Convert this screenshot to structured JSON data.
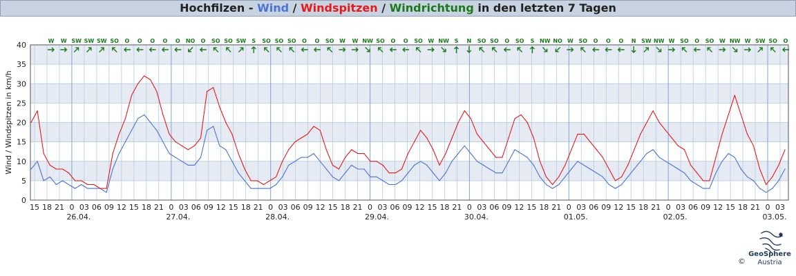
{
  "title_parts": {
    "station": "Hochfilzen",
    "sep1": " - ",
    "wind": "Wind",
    "sep2": " / ",
    "gust": "Windspitzen",
    "sep3": " / ",
    "direction": "Windrichtung",
    "suffix": " in den letzten 7 Tagen"
  },
  "colors": {
    "wind": "#4a74d6",
    "gust": "#e61a1a",
    "direction": "#1a7a1a",
    "band": "#e6eaf2",
    "grid": "#a9c8e4"
  },
  "chart_data": {
    "type": "line",
    "ylabel": "Wind / Windspitzen in km/h",
    "ylim": [
      0,
      40
    ],
    "yticks": [
      0,
      5,
      10,
      15,
      20,
      25,
      30,
      35,
      40
    ],
    "x_tick_labels": [
      "15",
      "18",
      "21",
      "0",
      "03",
      "06",
      "09",
      "12",
      "15",
      "18",
      "21",
      "0",
      "03",
      "06",
      "09",
      "12",
      "15",
      "18",
      "21",
      "0",
      "03",
      "06",
      "09",
      "12",
      "15",
      "18",
      "21",
      "0",
      "03",
      "06",
      "09",
      "12",
      "15",
      "18",
      "21",
      "0",
      "03",
      "06",
      "09",
      "12",
      "15",
      "18",
      "21",
      "0",
      "03",
      "06",
      "09",
      "12",
      "15",
      "18",
      "21",
      "0",
      "03",
      "06",
      "09",
      "12",
      "15",
      "18",
      "21",
      "0",
      "03"
    ],
    "date_labels": [
      "26.04.",
      "27.04.",
      "28.04.",
      "29.04.",
      "30.04.",
      "01.05.",
      "02.05.",
      "03.05."
    ],
    "direction_labels": [
      "W",
      "W",
      "SW",
      "SW",
      "SW",
      "SO",
      "O",
      "O",
      "O",
      "O",
      "O",
      "NO",
      "O",
      "SO",
      "SO",
      "SW",
      "S",
      "SO",
      "SO",
      "SO",
      "O",
      "O",
      "SO",
      "W",
      "W",
      "NW",
      "SO",
      "O",
      "O",
      "SO",
      "W",
      "NW",
      "S",
      "N",
      "SO",
      "SO",
      "O",
      "SO",
      "S",
      "NW",
      "NO",
      "W",
      "SO",
      "O",
      "O",
      "O",
      "N",
      "SW",
      "NW",
      "W",
      "SO",
      "O",
      "SO",
      "W",
      "NW",
      "W",
      "SW",
      "SO",
      "O"
    ],
    "series": [
      {
        "name": "Wind",
        "values": [
          8,
          10,
          5,
          6,
          4,
          5,
          4,
          3,
          4,
          3,
          3,
          3,
          2,
          8,
          12,
          15,
          18,
          21,
          22,
          20,
          18,
          15,
          12,
          11,
          10,
          9,
          9,
          11,
          18,
          19,
          14,
          13,
          10,
          7,
          5,
          3,
          3,
          3,
          3,
          4,
          6,
          9,
          10,
          11,
          11,
          12,
          10,
          8,
          6,
          5,
          7,
          9,
          8,
          8,
          6,
          6,
          5,
          4,
          4,
          5,
          7,
          9,
          10,
          9,
          7,
          5,
          7,
          10,
          12,
          14,
          12,
          10,
          9,
          8,
          7,
          7,
          10,
          13,
          12,
          11,
          9,
          6,
          4,
          3,
          4,
          6,
          8,
          10,
          9,
          8,
          7,
          6,
          4,
          3,
          4,
          6,
          8,
          10,
          12,
          13,
          11,
          10,
          9,
          8,
          7,
          5,
          4,
          3,
          3,
          7,
          10,
          12,
          11,
          8,
          6,
          5,
          3,
          2,
          3,
          5,
          8
        ]
      },
      {
        "name": "Windspitzen",
        "values": [
          20,
          23,
          12,
          9,
          8,
          8,
          7,
          5,
          5,
          4,
          4,
          3,
          3,
          12,
          17,
          21,
          27,
          30,
          32,
          31,
          28,
          22,
          17,
          15,
          14,
          13,
          14,
          16,
          28,
          29,
          24,
          20,
          17,
          12,
          8,
          5,
          5,
          4,
          5,
          6,
          10,
          13,
          15,
          16,
          17,
          19,
          18,
          13,
          9,
          8,
          11,
          13,
          12,
          12,
          10,
          10,
          9,
          7,
          7,
          8,
          12,
          15,
          18,
          16,
          13,
          9,
          12,
          16,
          20,
          23,
          21,
          17,
          15,
          13,
          11,
          11,
          16,
          21,
          22,
          20,
          16,
          10,
          6,
          4,
          6,
          9,
          13,
          17,
          17,
          15,
          13,
          11,
          8,
          5,
          6,
          9,
          13,
          17,
          20,
          23,
          20,
          18,
          16,
          14,
          13,
          9,
          7,
          5,
          5,
          11,
          17,
          22,
          27,
          22,
          17,
          14,
          8,
          4,
          6,
          9,
          13
        ]
      }
    ]
  },
  "brand": {
    "name": "GeoSphere",
    "country": "Austria",
    "copyright": "©"
  }
}
